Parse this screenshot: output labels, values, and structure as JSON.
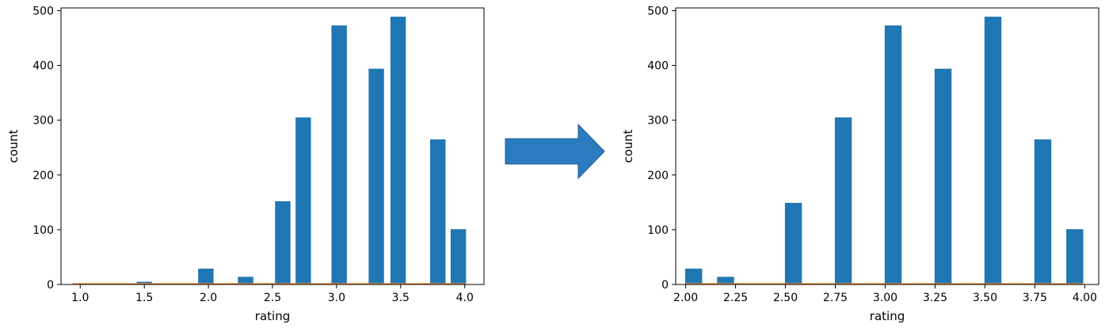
{
  "colors": {
    "bar": "#1f77b4",
    "baseline": "#e58a3a",
    "arrow": "#2b7bbf",
    "arrow_stroke": "#1a5e99"
  },
  "chart_data": [
    {
      "type": "bar",
      "title": "",
      "xlabel": "rating",
      "ylabel": "count",
      "xlim": [
        0.85,
        4.15
      ],
      "ylim": [
        0,
        505
      ],
      "xticks": [
        1.0,
        1.5,
        2.0,
        2.5,
        3.0,
        3.5,
        4.0
      ],
      "xtick_labels": [
        "1.0",
        "1.5",
        "2.0",
        "2.5",
        "3.0",
        "3.5",
        "4.0"
      ],
      "yticks": [
        0,
        100,
        200,
        300,
        400,
        500
      ],
      "ytick_labels": [
        "0",
        "100",
        "200",
        "300",
        "400",
        "500"
      ],
      "bar_width": 0.12,
      "bars": [
        {
          "x": 1.0,
          "value": 1
        },
        {
          "x": 1.5,
          "value": 5
        },
        {
          "x": 1.98,
          "value": 29
        },
        {
          "x": 2.29,
          "value": 14
        },
        {
          "x": 2.58,
          "value": 152
        },
        {
          "x": 2.74,
          "value": 305
        },
        {
          "x": 3.02,
          "value": 473
        },
        {
          "x": 3.31,
          "value": 394
        },
        {
          "x": 3.48,
          "value": 489
        },
        {
          "x": 3.79,
          "value": 265
        },
        {
          "x": 3.95,
          "value": 101
        }
      ],
      "grid": false,
      "legend": "none"
    },
    {
      "type": "bar",
      "title": "",
      "xlabel": "rating",
      "ylabel": "count",
      "xlim": [
        1.95,
        4.07
      ],
      "ylim": [
        0,
        505
      ],
      "xticks": [
        2.0,
        2.25,
        2.5,
        2.75,
        3.0,
        3.25,
        3.5,
        3.75,
        4.0
      ],
      "xtick_labels": [
        "2.00",
        "2.25",
        "2.50",
        "2.75",
        "3.00",
        "3.25",
        "3.50",
        "3.75",
        "4.00"
      ],
      "yticks": [
        0,
        100,
        200,
        300,
        400,
        500
      ],
      "ytick_labels": [
        "0",
        "100",
        "200",
        "300",
        "400",
        "500"
      ],
      "bar_width": 0.085,
      "bars": [
        {
          "x": 2.04,
          "value": 29
        },
        {
          "x": 2.2,
          "value": 14
        },
        {
          "x": 2.54,
          "value": 149
        },
        {
          "x": 2.79,
          "value": 305
        },
        {
          "x": 3.04,
          "value": 473
        },
        {
          "x": 3.29,
          "value": 394
        },
        {
          "x": 3.54,
          "value": 489
        },
        {
          "x": 3.79,
          "value": 265
        },
        {
          "x": 3.95,
          "value": 101
        }
      ],
      "grid": false,
      "legend": "none"
    }
  ]
}
